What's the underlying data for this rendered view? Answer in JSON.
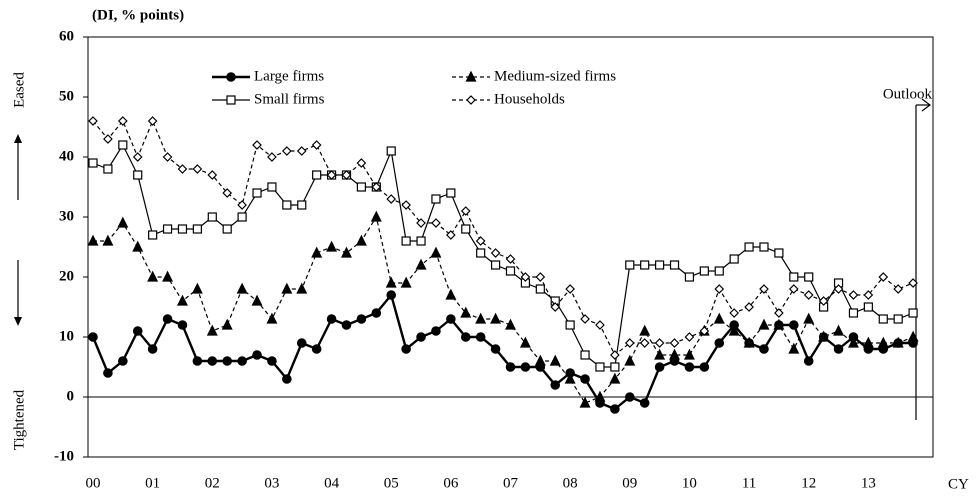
{
  "chart_data": {
    "type": "line",
    "y_label": "(DI, % points)",
    "eased_label": "Eased",
    "tightened_label": "Tightened",
    "x_unit_label": "CY",
    "annotation": "Outlook",
    "categories": [
      "00",
      null,
      null,
      null,
      "01",
      null,
      null,
      null,
      "02",
      null,
      null,
      null,
      "03",
      null,
      null,
      null,
      "04",
      null,
      null,
      null,
      "05",
      null,
      null,
      null,
      "06",
      null,
      null,
      null,
      "07",
      null,
      null,
      null,
      "08",
      null,
      null,
      null,
      "09",
      null,
      null,
      null,
      "10",
      null,
      null,
      null,
      "11",
      null,
      null,
      null,
      "12",
      null,
      null,
      null,
      "13",
      null,
      null,
      null
    ],
    "ylim": [
      -10,
      60
    ],
    "yticks": [
      -10,
      0,
      10,
      20,
      30,
      40,
      50,
      60
    ],
    "series": [
      {
        "name": "Large firms",
        "color": "#000000",
        "marker": "circle",
        "filled": true,
        "dashed": false,
        "values": [
          10,
          4,
          6,
          11,
          8,
          13,
          12,
          6,
          6,
          6,
          6,
          7,
          6,
          3,
          9,
          8,
          13,
          12,
          13,
          14,
          17,
          8,
          10,
          11,
          13,
          10,
          10,
          8,
          5,
          5,
          5,
          2,
          4,
          3,
          -1,
          -2,
          0,
          -1,
          5,
          6,
          5,
          5,
          9,
          12,
          9,
          8,
          12,
          12,
          6,
          10,
          8,
          10,
          8,
          8,
          9,
          9
        ]
      },
      {
        "name": "Medium-sized firms",
        "color": "#000000",
        "marker": "triangle",
        "filled": true,
        "dashed": true,
        "values": [
          26,
          26,
          29,
          25,
          20,
          20,
          16,
          18,
          11,
          12,
          18,
          16,
          13,
          18,
          18,
          24,
          25,
          24,
          26,
          30,
          19,
          19,
          22,
          24,
          17,
          14,
          13,
          13,
          12,
          9,
          6,
          6,
          3,
          -1,
          0,
          3,
          6,
          11,
          7,
          7,
          7,
          11,
          13,
          11,
          9,
          12,
          12,
          8,
          13,
          10,
          11,
          9,
          9,
          9,
          9,
          10
        ]
      },
      {
        "name": "Small firms",
        "color": "#000000",
        "marker": "square",
        "filled": false,
        "dashed": false,
        "values": [
          39,
          38,
          42,
          37,
          27,
          28,
          28,
          28,
          30,
          28,
          30,
          34,
          35,
          32,
          32,
          37,
          37,
          37,
          35,
          35,
          41,
          26,
          26,
          33,
          34,
          28,
          24,
          22,
          21,
          19,
          18,
          16,
          12,
          7,
          5,
          5,
          22,
          22,
          22,
          22,
          20,
          21,
          21,
          23,
          25,
          25,
          24,
          20,
          20,
          15,
          19,
          14,
          15,
          13,
          13,
          14
        ]
      },
      {
        "name": "Households",
        "color": "#000000",
        "marker": "diamond",
        "filled": false,
        "dashed": true,
        "values": [
          46,
          43,
          46,
          40,
          46,
          40,
          38,
          38,
          37,
          34,
          32,
          42,
          40,
          41,
          41,
          42,
          37,
          37,
          39,
          35,
          33,
          32,
          29,
          29,
          27,
          31,
          26,
          24,
          23,
          20,
          20,
          15,
          18,
          13,
          12,
          7,
          9,
          9,
          9,
          9,
          10,
          11,
          18,
          14,
          15,
          18,
          14,
          18,
          17,
          16,
          18,
          17,
          17,
          20,
          18,
          19
        ]
      }
    ]
  }
}
